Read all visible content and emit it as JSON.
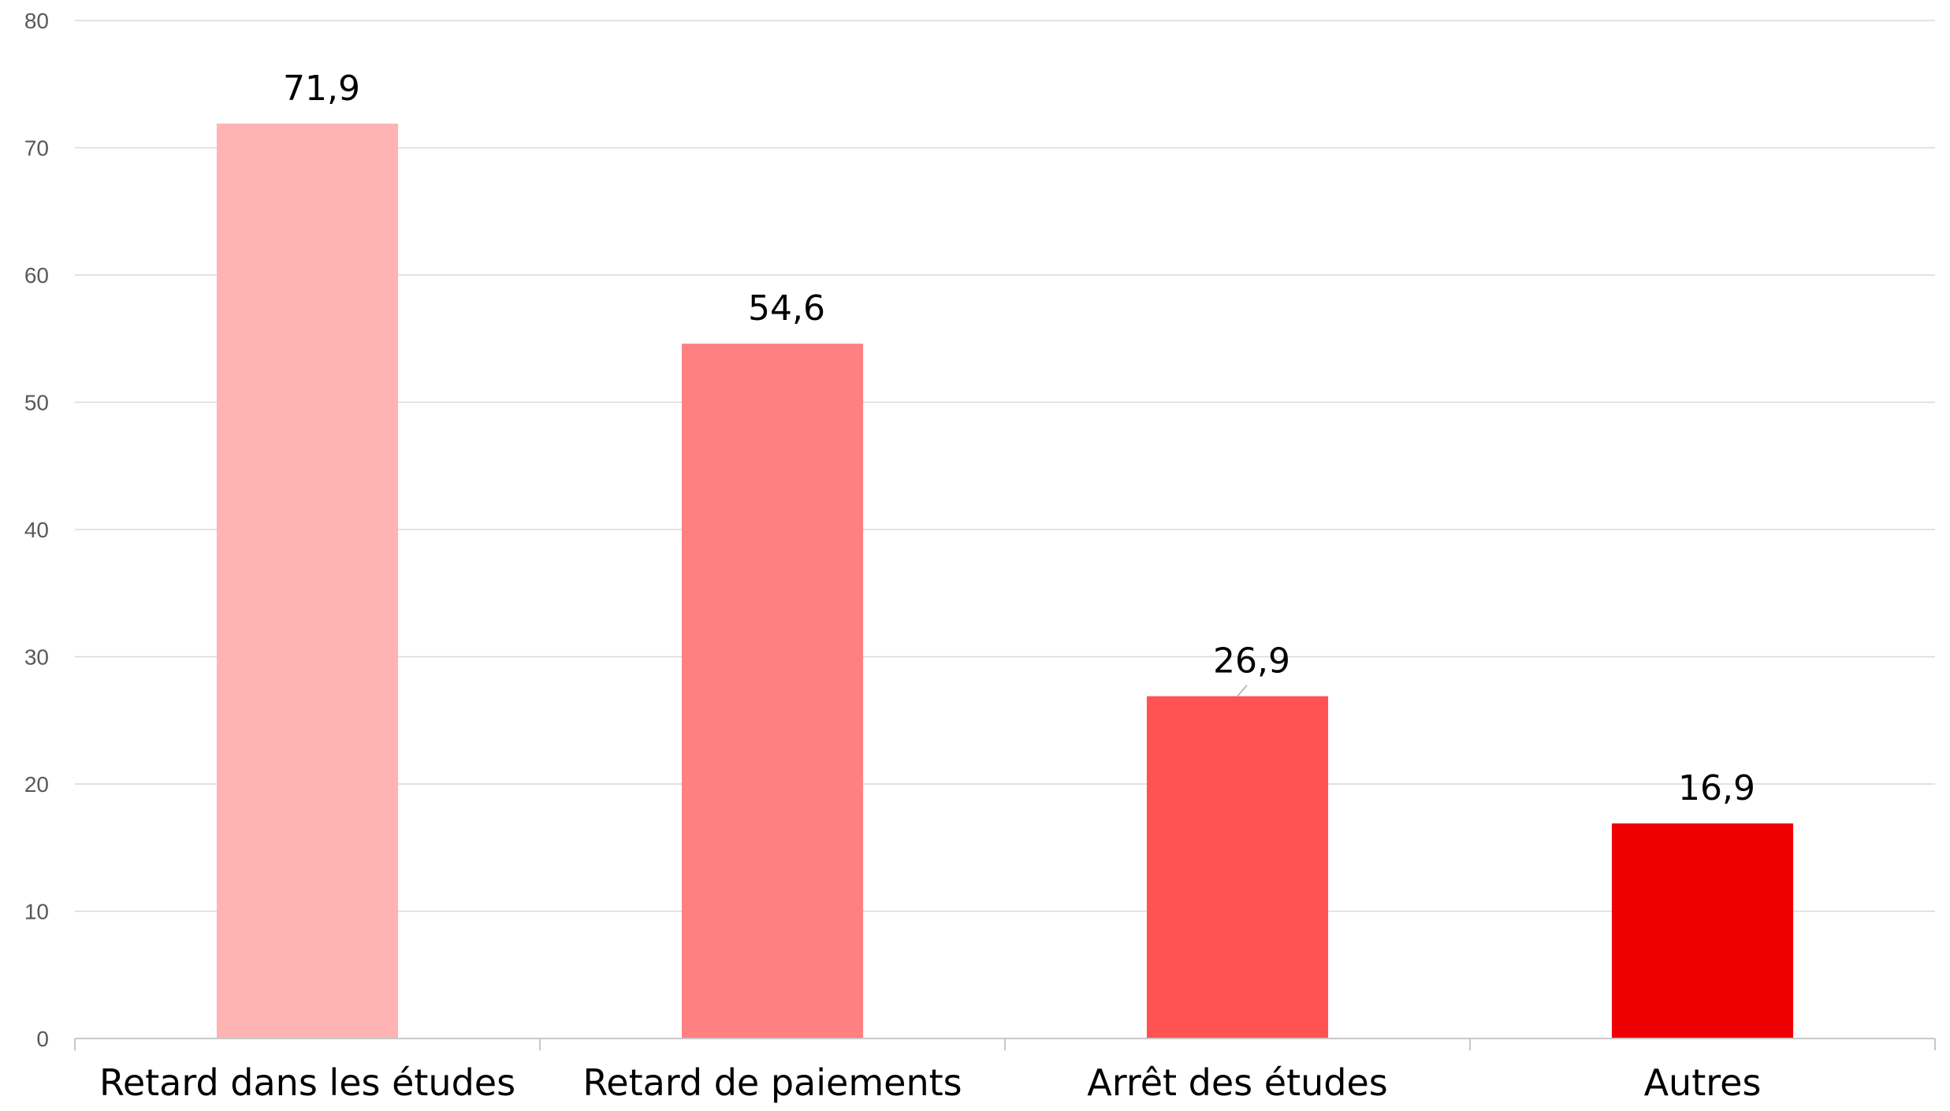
{
  "chart_data": {
    "type": "bar",
    "categories": [
      "Retard dans les études",
      "Retard de paiements",
      "Arrêt des études",
      "Autres"
    ],
    "values": [
      71.9,
      54.6,
      26.9,
      16.9
    ],
    "value_labels": [
      "71,9",
      "54,6",
      "26,9",
      "16,9"
    ],
    "colors": [
      "#FFB3B3",
      "#FF8080",
      "#FF5252",
      "#EE0000"
    ],
    "ylim": [
      0,
      80
    ],
    "yticks": [
      0,
      10,
      20,
      30,
      40,
      50,
      60,
      70,
      80
    ],
    "grid": true,
    "legend": "none"
  }
}
